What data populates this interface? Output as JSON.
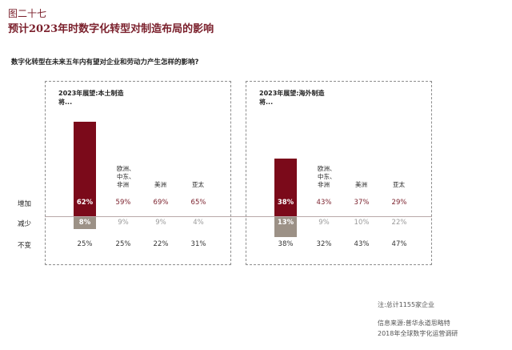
{
  "figure_label": "图二十七",
  "figure_title": "预计2023年时数字化转型对制造布局的影响",
  "question": "数字化转型在未来五年内有望对企业和劳动力产生怎样的影响?",
  "row_labels": [
    "增加",
    "减少",
    "不变"
  ],
  "colors": {
    "increase": "#7b0a1a",
    "decrease": "#9c9186",
    "title": "#7a1f2b"
  },
  "chart_data": [
    {
      "type": "bar",
      "panel_title": "2023年展望:本土制造将...",
      "categories": [
        "",
        "欧洲、中东、非洲",
        "美洲",
        "亚太"
      ],
      "series": [
        {
          "name": "增加",
          "values": [
            62,
            59,
            69,
            65
          ]
        },
        {
          "name": "减少",
          "values": [
            8,
            9,
            9,
            4
          ]
        },
        {
          "name": "不变",
          "values": [
            25,
            25,
            22,
            31
          ]
        }
      ],
      "unit": "%"
    },
    {
      "type": "bar",
      "panel_title": "2023年展望:海外制造将...",
      "categories": [
        "",
        "欧洲、中东、非洲",
        "美洲",
        "亚太"
      ],
      "series": [
        {
          "name": "增加",
          "values": [
            38,
            43,
            37,
            29
          ]
        },
        {
          "name": "减少",
          "values": [
            13,
            9,
            10,
            22
          ]
        },
        {
          "name": "不变",
          "values": [
            38,
            32,
            43,
            47
          ]
        }
      ],
      "unit": "%"
    }
  ],
  "footnote": "注:总计1155家企业",
  "source_line1": "信息来源:普华永道思略特",
  "source_line2": "2018年全球数字化运营调研"
}
